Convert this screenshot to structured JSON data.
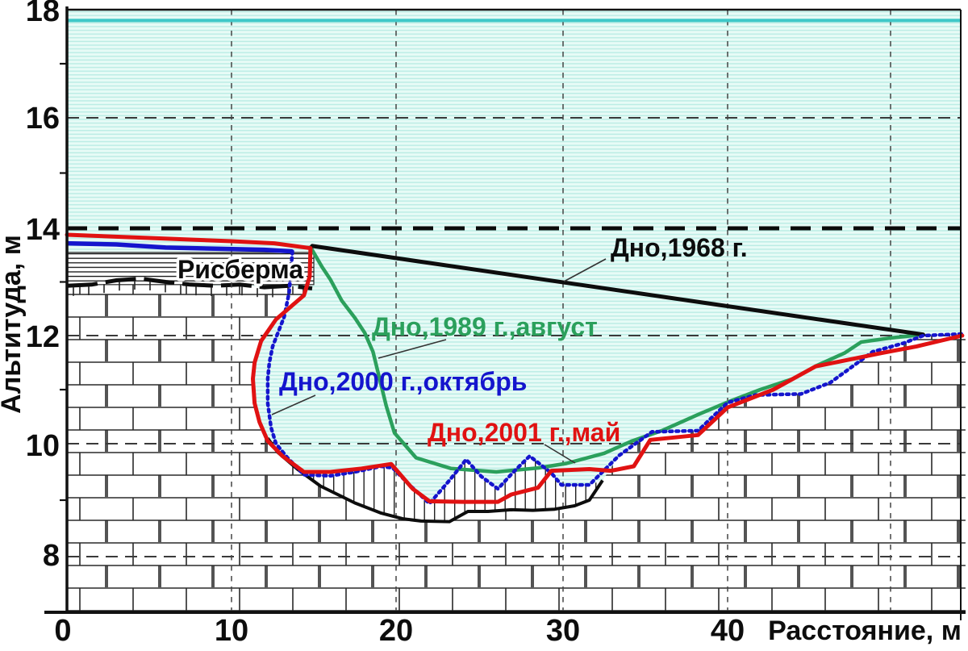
{
  "figure": {
    "y_axis": {
      "title": "Альтитуда, м",
      "ticks": [
        "18",
        "16",
        "14",
        "12",
        "10",
        "8"
      ],
      "tick_values": [
        18,
        16,
        14,
        12,
        10,
        8
      ],
      "minor_tick_values": [
        17,
        15,
        13,
        11,
        9
      ],
      "major_grid_values": [
        16,
        12,
        10,
        8
      ],
      "emphasized_grid_value": 14
    },
    "x_axis": {
      "title": "Расстояние, м",
      "ticks": [
        "0",
        "10",
        "20",
        "30",
        "40"
      ],
      "tick_values": [
        0,
        10,
        20,
        30,
        40
      ],
      "grid_values": [
        10,
        20,
        30,
        40,
        50
      ]
    },
    "annotations": {
      "bed_1968_label": {
        "text": "Дно,1968 г.",
        "color": "#0d0d0d"
      },
      "bed_1989_label": {
        "text": "Дно,1989 г.,август",
        "color": "#2ba05c"
      },
      "bed_2000_label": {
        "text": "Дно,2000 г.,октябрь",
        "color": "#1515cd"
      },
      "bed_2001_label": {
        "text": "Дно,2001 г.,май",
        "color": "#e01212"
      },
      "apron_label": {
        "text": "Рисберма",
        "color": "#0d0d0d"
      }
    },
    "colors": {
      "water_fill": "#e7fbf6",
      "water_stripe": "#b9ece4",
      "water_surface": "#3fc8c8",
      "grid": "#3a3a3a",
      "ground_outline": "#2a2a2a"
    }
  },
  "chart_data": {
    "type": "line",
    "title": "",
    "xlabel": "Расстояние, м",
    "ylabel": "Альтитуда, м",
    "xlim": [
      0,
      54.6
    ],
    "ylim": [
      7,
      18
    ],
    "water_level": 17.8,
    "series": [
      {
        "id": "bed_1968",
        "name": "Дно,1968 г.",
        "color": "#0d0d0d",
        "points": [
          [
            14.9,
            13.67
          ],
          [
            52.0,
            12.02
          ]
        ]
      },
      {
        "id": "bed_1989",
        "name": "Дно,1989 г.,август",
        "color": "#2ba05c",
        "points": [
          [
            14.8,
            13.65
          ],
          [
            15.5,
            13.28
          ],
          [
            16,
            13.05
          ],
          [
            16.7,
            12.65
          ],
          [
            17.5,
            12.33
          ],
          [
            18.1,
            12.05
          ],
          [
            18.6,
            11.7
          ],
          [
            19,
            11.2
          ],
          [
            19.4,
            10.7
          ],
          [
            19.9,
            10.2
          ],
          [
            21.2,
            9.75
          ],
          [
            23.3,
            9.56
          ],
          [
            26,
            9.5
          ],
          [
            28.5,
            9.57
          ],
          [
            30.2,
            9.65
          ],
          [
            32.5,
            9.83
          ],
          [
            34.2,
            10.05
          ],
          [
            36,
            10.24
          ],
          [
            38.3,
            10.55
          ],
          [
            40.1,
            10.78
          ],
          [
            42,
            11.0
          ],
          [
            44,
            11.2
          ],
          [
            45.5,
            11.45
          ],
          [
            47.2,
            11.68
          ],
          [
            48.2,
            11.88
          ],
          [
            50.1,
            11.96
          ],
          [
            52,
            12.02
          ]
        ]
      },
      {
        "id": "bed_2000",
        "name": "Дно,2000 г.,октябрь",
        "color": "#1515cd",
        "points": [
          [
            0,
            13.72
          ],
          [
            3,
            13.7
          ],
          [
            6,
            13.64
          ],
          [
            9,
            13.62
          ],
          [
            12,
            13.6
          ],
          [
            13.7,
            13.57
          ],
          [
            13.5,
            12.8
          ],
          [
            13.2,
            12.35
          ],
          [
            12.5,
            11.8
          ],
          [
            12.3,
            11.5
          ],
          [
            12.2,
            11.2
          ],
          [
            12.2,
            10.75
          ],
          [
            12.4,
            10.3
          ],
          [
            12.7,
            10.0
          ],
          [
            13.4,
            9.75
          ],
          [
            14.4,
            9.45
          ],
          [
            16,
            9.43
          ],
          [
            17.5,
            9.5
          ],
          [
            19.1,
            9.6
          ],
          [
            19.8,
            9.57
          ],
          [
            20.8,
            9.27
          ],
          [
            22,
            8.94
          ],
          [
            23.2,
            9.35
          ],
          [
            24.2,
            9.72
          ],
          [
            25.1,
            9.42
          ],
          [
            26.1,
            9.2
          ],
          [
            27,
            9.49
          ],
          [
            28,
            9.78
          ],
          [
            29.3,
            9.48
          ],
          [
            29.9,
            9.27
          ],
          [
            31.6,
            9.27
          ],
          [
            33.4,
            9.79
          ],
          [
            35.4,
            10.22
          ],
          [
            38.2,
            10.24
          ],
          [
            40,
            10.76
          ],
          [
            41.7,
            10.9
          ],
          [
            44.5,
            10.92
          ],
          [
            46.3,
            11.13
          ],
          [
            48.9,
            11.7
          ],
          [
            50.8,
            11.86
          ],
          [
            52,
            12.0
          ],
          [
            54.4,
            12.03
          ]
        ]
      },
      {
        "id": "bed_2001",
        "name": "Дно,2001 г.,май",
        "color": "#e01212",
        "points": [
          [
            0,
            13.88
          ],
          [
            5,
            13.82
          ],
          [
            10,
            13.76
          ],
          [
            12.6,
            13.72
          ],
          [
            14.8,
            13.63
          ],
          [
            14.75,
            13.1
          ],
          [
            14.4,
            12.75
          ],
          [
            12.7,
            12.3
          ],
          [
            11.8,
            11.9
          ],
          [
            11.4,
            11.5
          ],
          [
            11.3,
            11.2
          ],
          [
            11.4,
            10.75
          ],
          [
            11.7,
            10.4
          ],
          [
            12.2,
            10.05
          ],
          [
            13.1,
            9.78
          ],
          [
            14.4,
            9.5
          ],
          [
            16,
            9.5
          ],
          [
            17.9,
            9.56
          ],
          [
            19.7,
            9.64
          ],
          [
            21,
            9.2
          ],
          [
            22,
            8.98
          ],
          [
            24,
            8.97
          ],
          [
            26.1,
            8.97
          ],
          [
            26.9,
            9.1
          ],
          [
            28.5,
            9.22
          ],
          [
            29.3,
            9.52
          ],
          [
            31.6,
            9.55
          ],
          [
            32.9,
            9.52
          ],
          [
            34.3,
            9.6
          ],
          [
            35.3,
            10.07
          ],
          [
            38.2,
            10.16
          ],
          [
            40,
            10.67
          ],
          [
            42.8,
            11.0
          ],
          [
            45.4,
            11.43
          ],
          [
            49.5,
            11.68
          ],
          [
            51.6,
            11.8
          ],
          [
            54.4,
            12.0
          ]
        ]
      }
    ],
    "outlines": {
      "apron": {
        "x0": 0,
        "x1": 15.0,
        "top": 13.55,
        "bottom": 12.95,
        "label": "Рисберма"
      },
      "apron_base": [
        [
          0,
          12.93
        ],
        [
          1.5,
          12.95
        ],
        [
          3,
          13.03
        ],
        [
          4.5,
          13.06
        ],
        [
          6,
          13.0
        ],
        [
          7.5,
          12.95
        ],
        [
          9,
          12.93
        ],
        [
          10.5,
          12.95
        ],
        [
          12,
          12.9
        ],
        [
          13.5,
          12.93
        ],
        [
          14.9,
          12.88
        ]
      ],
      "scour": [
        [
          12.2,
          10.1
        ],
        [
          12.8,
          9.85
        ],
        [
          14,
          9.55
        ],
        [
          15.4,
          9.25
        ],
        [
          17.5,
          8.95
        ],
        [
          19.1,
          8.77
        ],
        [
          20.4,
          8.67
        ],
        [
          21.5,
          8.63
        ],
        [
          23.2,
          8.62
        ],
        [
          24.3,
          8.8
        ],
        [
          25.5,
          8.8
        ],
        [
          26.9,
          8.83
        ],
        [
          28.2,
          8.82
        ],
        [
          29.5,
          8.84
        ],
        [
          30.7,
          8.9
        ],
        [
          31.6,
          9.0
        ],
        [
          32.4,
          9.35
        ]
      ]
    }
  }
}
